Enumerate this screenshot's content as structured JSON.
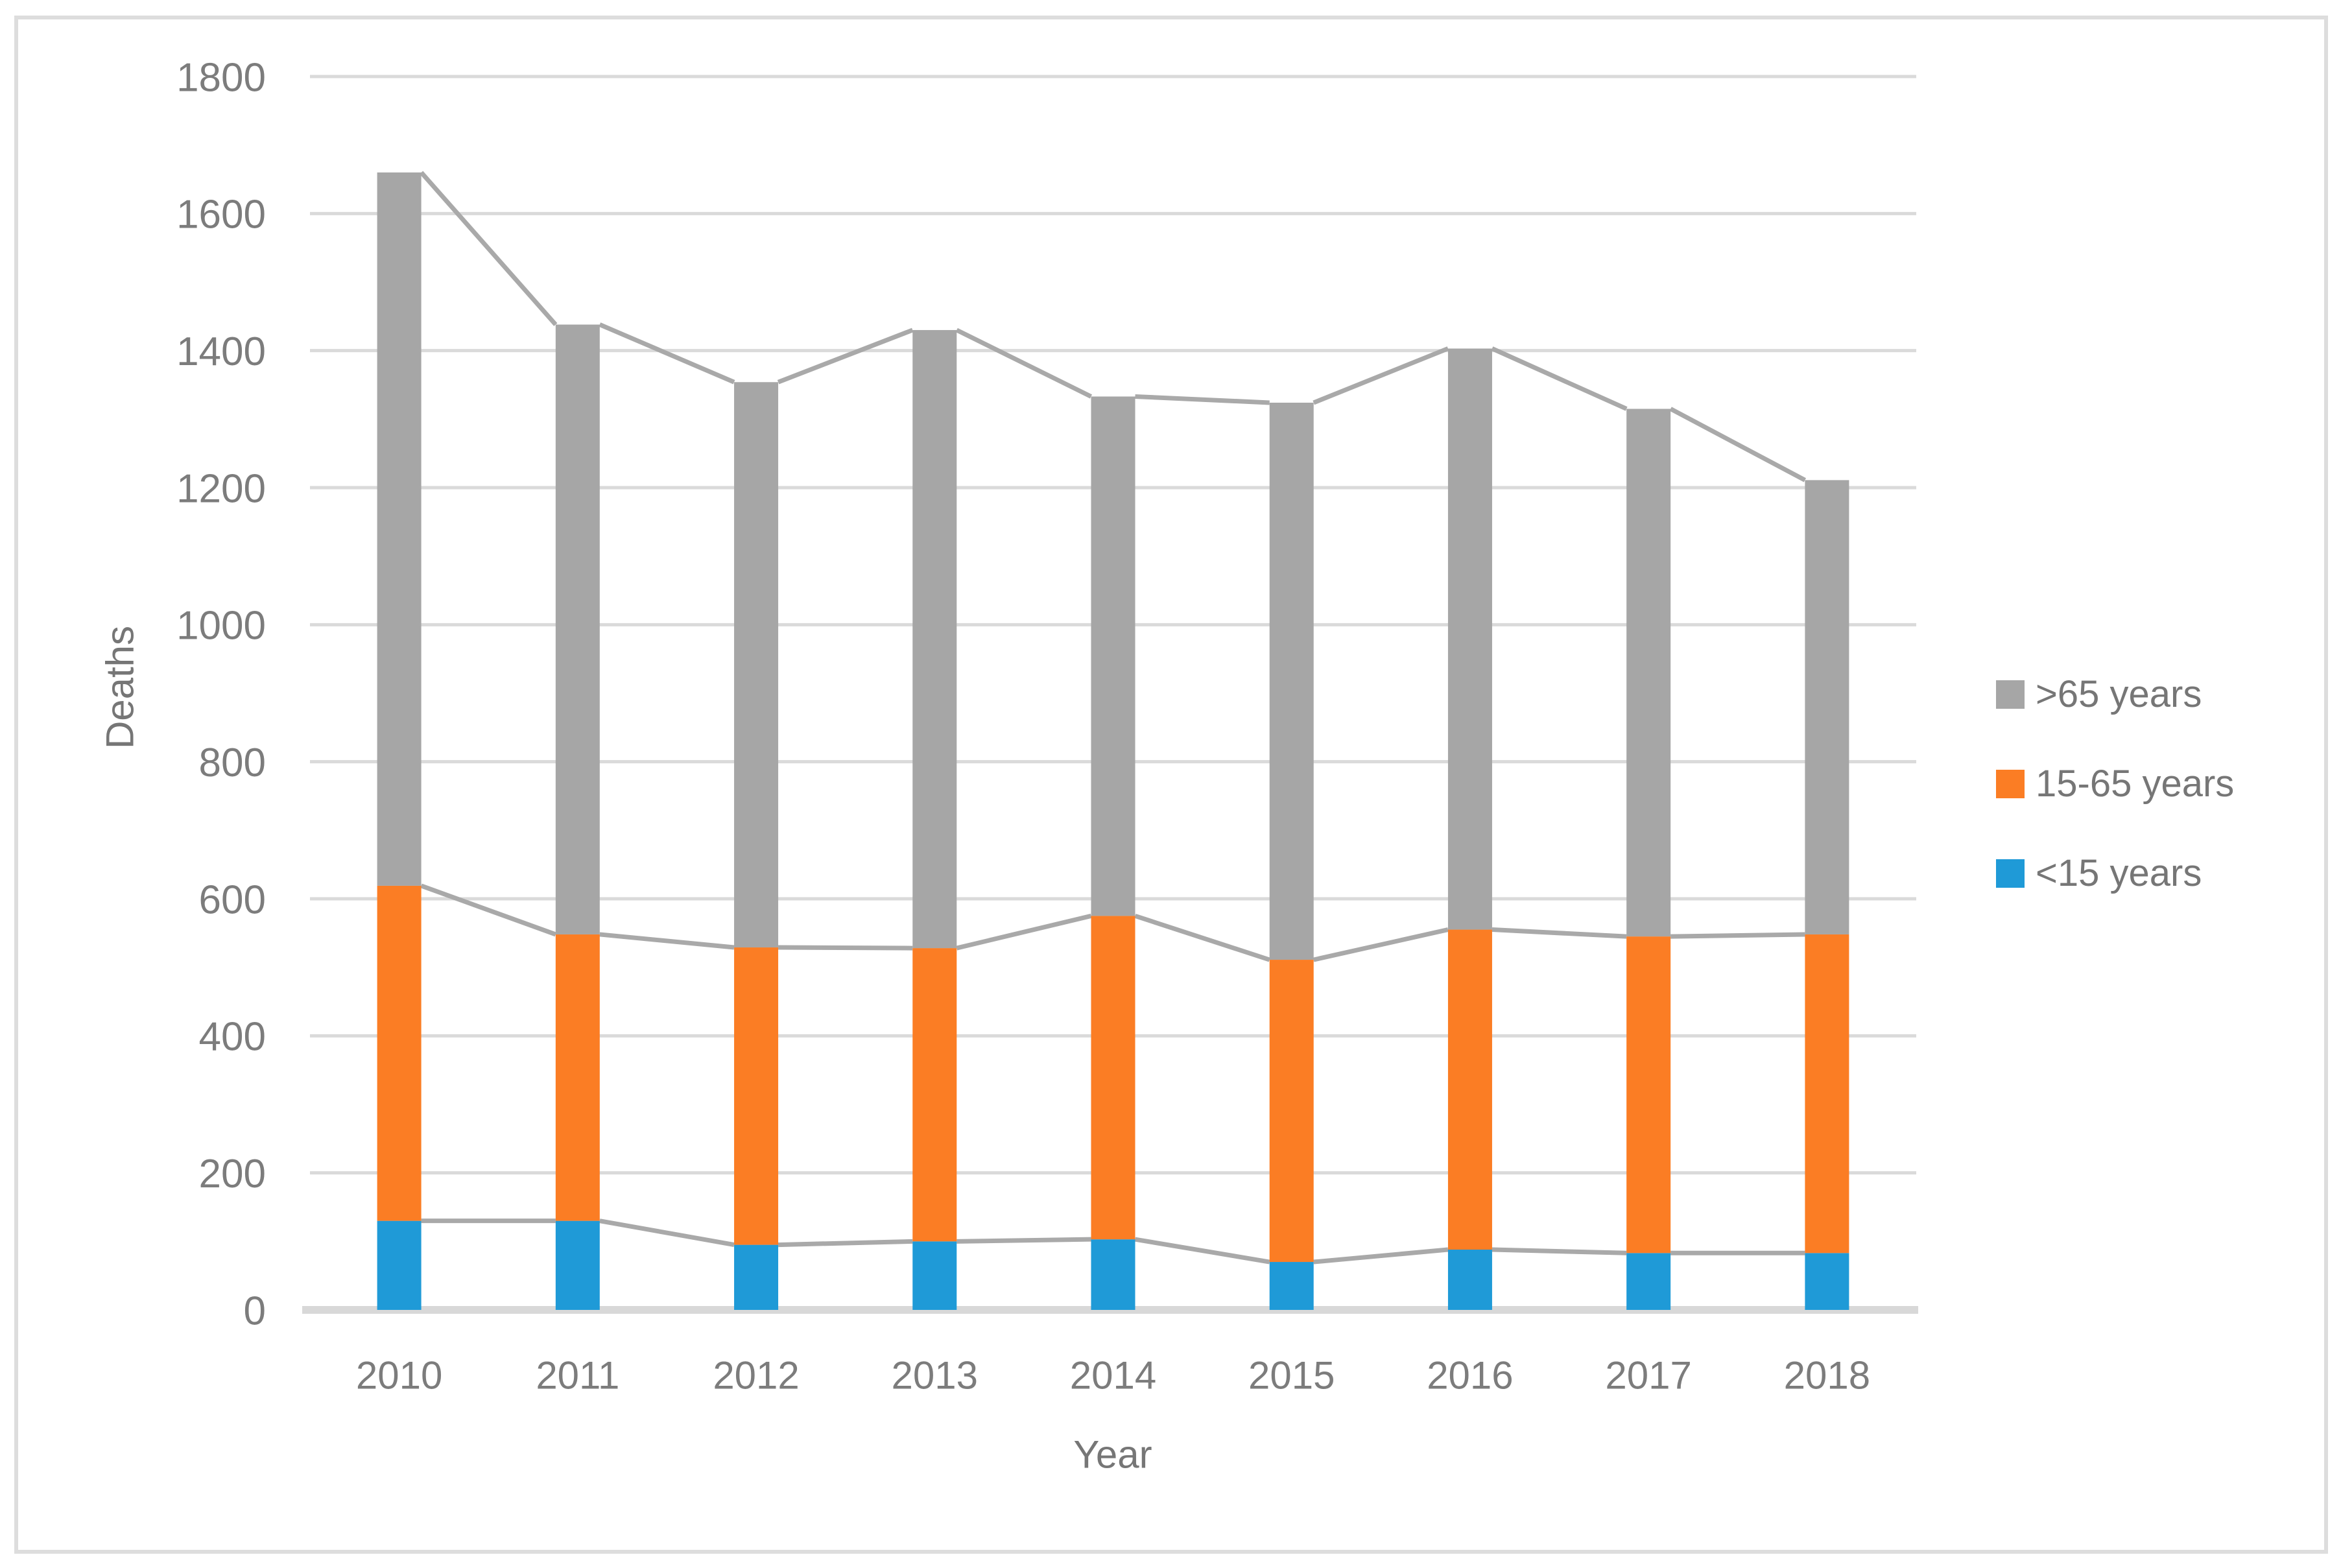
{
  "chart_data": {
    "type": "bar",
    "stacked": true,
    "orientation": "vertical",
    "title": "",
    "xlabel": "Year",
    "ylabel": "Deaths",
    "categories": [
      "2010",
      "2011",
      "2012",
      "2013",
      "2014",
      "2015",
      "2016",
      "2017",
      "2018"
    ],
    "series": [
      {
        "name": "<15 years",
        "color": "#1f9ad7",
        "values": [
          130,
          130,
          95,
          100,
          103,
          70,
          88,
          83,
          83
        ]
      },
      {
        "name": "15-65 years",
        "color": "#fb7d24",
        "values": [
          489,
          418,
          434,
          428,
          472,
          441,
          467,
          462,
          465
        ]
      },
      {
        "name": ">65 years",
        "color": "#a6a6a6",
        "values": [
          1041,
          890,
          825,
          902,
          758,
          813,
          848,
          770,
          663
        ]
      }
    ],
    "stack_totals": [
      1660,
      1438,
      1354,
      1430,
      1333,
      1324,
      1403,
      1315,
      1211
    ],
    "ylim": [
      0,
      1800
    ],
    "yticks": [
      0,
      200,
      400,
      600,
      800,
      1000,
      1200,
      1400,
      1600,
      1800
    ],
    "grid": true,
    "series_lines": true,
    "legend": {
      "position": "right",
      "entries": [
        {
          "label": ">65 years",
          "color": "#a6a6a6"
        },
        {
          "label": "15-65 years",
          "color": "#fb7d24"
        },
        {
          "label": "<15 years",
          "color": "#1f9ad7"
        }
      ]
    },
    "style_colors": {
      "gridline": "#dadada",
      "axis_line": "#d8d8d8",
      "series_line": "#a9a9a9",
      "tick_text": "#7c7c7c",
      "border": "#dddddd"
    }
  }
}
